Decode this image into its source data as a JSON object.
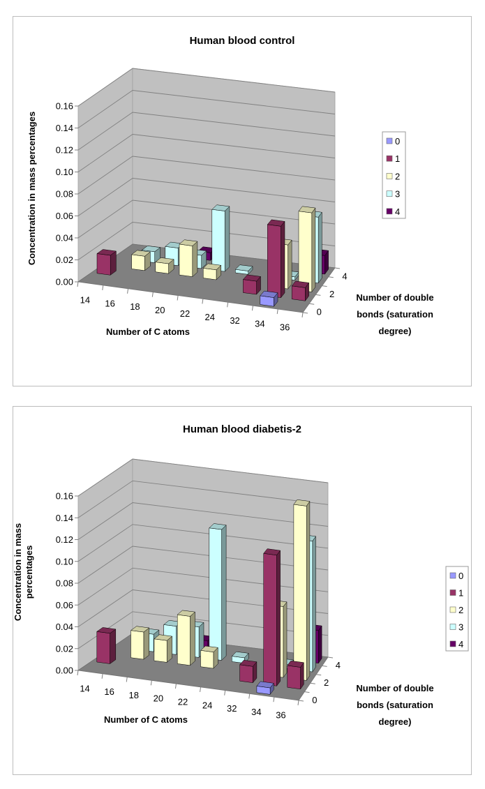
{
  "colors": {
    "0": "#9999ff",
    "1": "#993366",
    "2": "#ffffcc",
    "3": "#ccffff",
    "4": "#660066",
    "wall": "#c0c0c0",
    "floor": "#808080"
  },
  "chart_data": [
    {
      "type": "bar",
      "subtype": "3d-column",
      "title": "Human blood control",
      "xlabel": "Number of C atoms",
      "ylabel": "Concentration in mass percentages",
      "zlabel": "Number of double bonds (saturation degree)",
      "zlabel_lines": [
        "Number of double",
        "bonds (saturation",
        "degree)"
      ],
      "ylabel_lines": [
        "Concentration in mass percentages"
      ],
      "categories": [
        "14",
        "16",
        "18",
        "20",
        "22",
        "24",
        "32",
        "34",
        "36"
      ],
      "yticks": [
        "0.00",
        "0.02",
        "0.04",
        "0.06",
        "0.08",
        "0.10",
        "0.12",
        "0.14",
        "0.16"
      ],
      "zticks": [
        "0",
        "2",
        "4"
      ],
      "ylim": [
        0,
        0.16
      ],
      "legend_position": "right",
      "series": [
        {
          "name": "0",
          "values": [
            0,
            0,
            0,
            0,
            0,
            0,
            0,
            0.008,
            0
          ]
        },
        {
          "name": "1",
          "values": [
            0.018,
            0,
            0,
            0,
            0,
            0,
            0.012,
            0.065,
            0.012
          ]
        },
        {
          "name": "2",
          "values": [
            0,
            0.013,
            0.009,
            0.028,
            0.009,
            0,
            0,
            0.04,
            0.072
          ]
        },
        {
          "name": "3",
          "values": [
            0,
            0.01,
            0.016,
            0.012,
            0.055,
            0.003,
            0,
            0.003,
            0.06
          ]
        },
        {
          "name": "4",
          "values": [
            0,
            0,
            0.004,
            0.007,
            0,
            0,
            0,
            0,
            0.017
          ]
        }
      ]
    },
    {
      "type": "bar",
      "subtype": "3d-column",
      "title": "Human blood diabetis-2",
      "xlabel": "Number of C atoms",
      "ylabel": "Concentration in mass percentages",
      "zlabel": "Number of double bonds (saturation degree)",
      "zlabel_lines": [
        "Number of double",
        "bonds (saturation",
        "degree)"
      ],
      "ylabel_lines": [
        "Concentration in mass",
        "percentages"
      ],
      "categories": [
        "14",
        "16",
        "18",
        "20",
        "22",
        "24",
        "32",
        "34",
        "36"
      ],
      "yticks": [
        "0.00",
        "0.02",
        "0.04",
        "0.06",
        "0.08",
        "0.10",
        "0.12",
        "0.14",
        "0.16"
      ],
      "zticks": [
        "0",
        "2",
        "4"
      ],
      "ylim": [
        0,
        0.16
      ],
      "legend_position": "right",
      "series": [
        {
          "name": "0",
          "values": [
            0,
            0,
            0,
            0,
            0,
            0,
            0,
            0.006,
            0
          ]
        },
        {
          "name": "1",
          "values": [
            0.028,
            0,
            0,
            0,
            0,
            0,
            0.015,
            0.12,
            0.02
          ]
        },
        {
          "name": "2",
          "values": [
            0,
            0.025,
            0.02,
            0.045,
            0.015,
            0,
            0,
            0.065,
            0.16
          ]
        },
        {
          "name": "3",
          "values": [
            0,
            0.016,
            0.026,
            0.028,
            0.12,
            0.005,
            0,
            0.004,
            0.12
          ]
        },
        {
          "name": "4",
          "values": [
            0,
            0,
            0,
            0.008,
            0,
            0,
            0,
            0,
            0.03
          ]
        }
      ]
    }
  ]
}
